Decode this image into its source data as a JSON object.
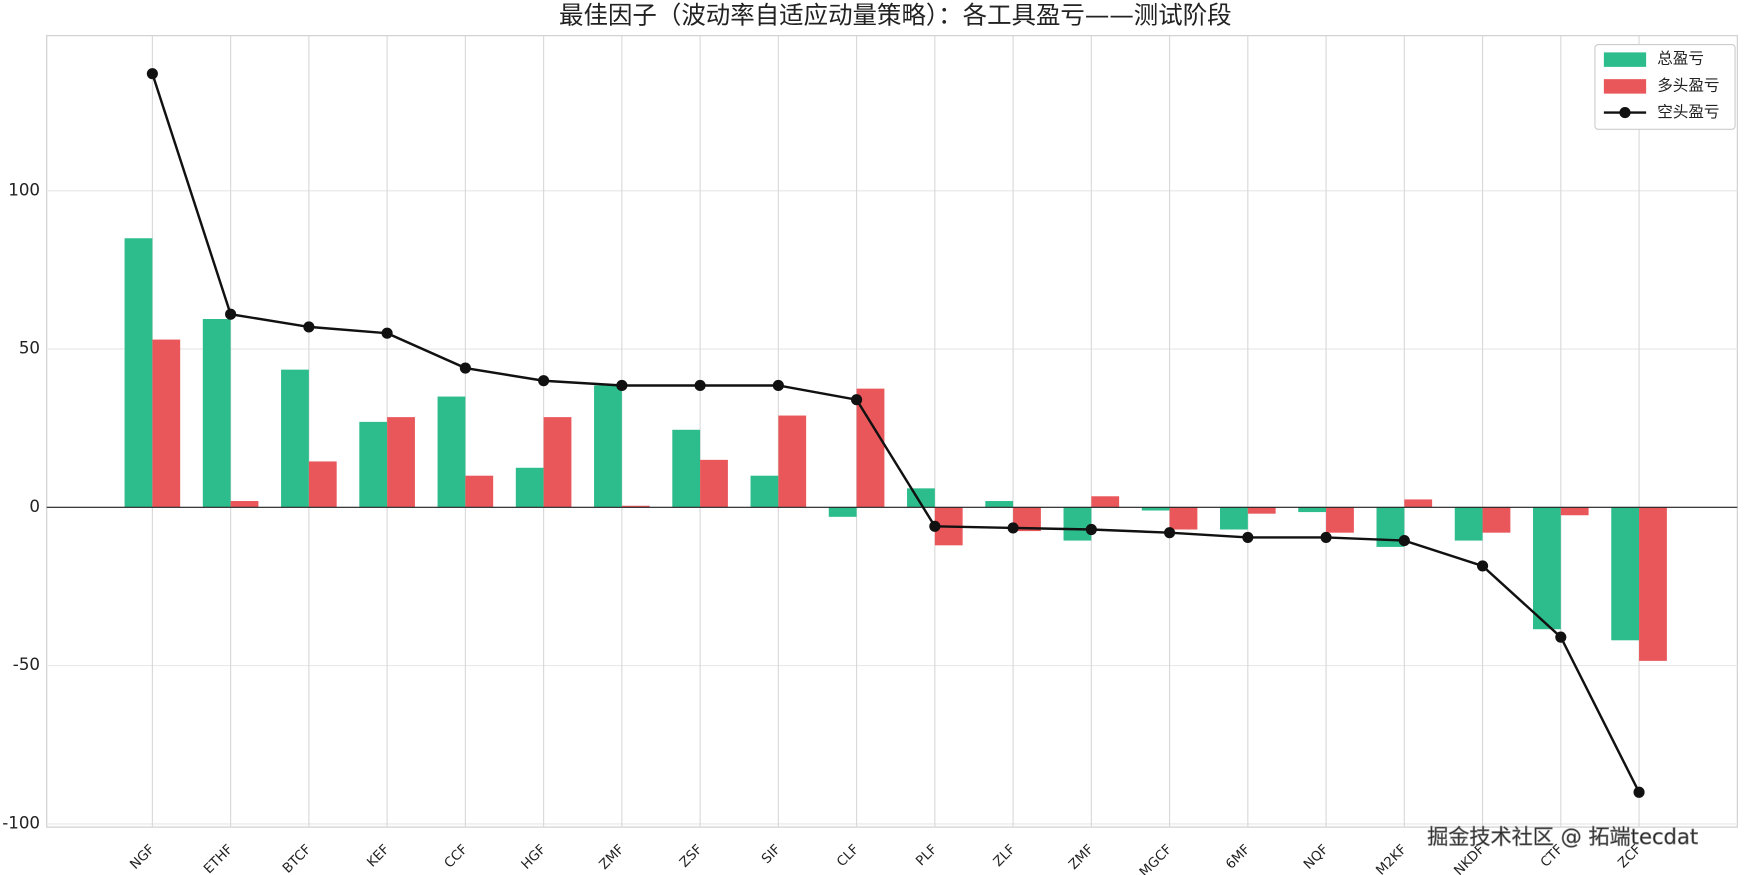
{
  "chart_data": {
    "type": "bar",
    "title": "最佳因子（波动率自适应动量策略）：各工具盈亏——测试阶段",
    "categories": [
      "NGF",
      "ETHF",
      "BTCF",
      "KEF",
      "CCF",
      "HGF",
      "ZMF",
      "ZSF",
      "SIF",
      "CLF",
      "PLF",
      "ZLF",
      "ZMF",
      "MGCF",
      "6MF",
      "NQF",
      "M2KF",
      "NKDF",
      "CTF",
      "ZCF"
    ],
    "series": [
      {
        "name": "总盈亏",
        "kind": "bar",
        "color": "#2dbd8c",
        "values": [
          85,
          59.5,
          43.5,
          27,
          35,
          12.5,
          38.5,
          24.5,
          10,
          -3,
          6,
          2,
          -10.5,
          -1,
          -7,
          -1.5,
          -12.5,
          -10.5,
          -38.5,
          -42
        ]
      },
      {
        "name": "多头盈亏",
        "kind": "bar",
        "color": "#e9575b",
        "values": [
          53,
          2,
          14.5,
          28.5,
          10,
          28.5,
          0.5,
          15,
          29,
          37.5,
          -12,
          -7.5,
          3.5,
          -7,
          -2,
          -8,
          2.5,
          -8,
          -2.5,
          -48.5
        ]
      },
      {
        "name": "空头盈亏",
        "kind": "line",
        "color": "#111111",
        "values": [
          137,
          61,
          57,
          55,
          44,
          40,
          38.5,
          38.5,
          38.5,
          34,
          -6,
          -6.5,
          -7,
          -8,
          -9.5,
          -9.5,
          -10.5,
          -18.5,
          -41,
          -90
        ]
      }
    ],
    "ylim": [
      -101,
      149
    ],
    "yticks": [
      -100,
      -50,
      0,
      50,
      100
    ],
    "grid": true,
    "legend": "upper right",
    "watermark": "掘金技术社区 @ 拓端tecdat"
  }
}
